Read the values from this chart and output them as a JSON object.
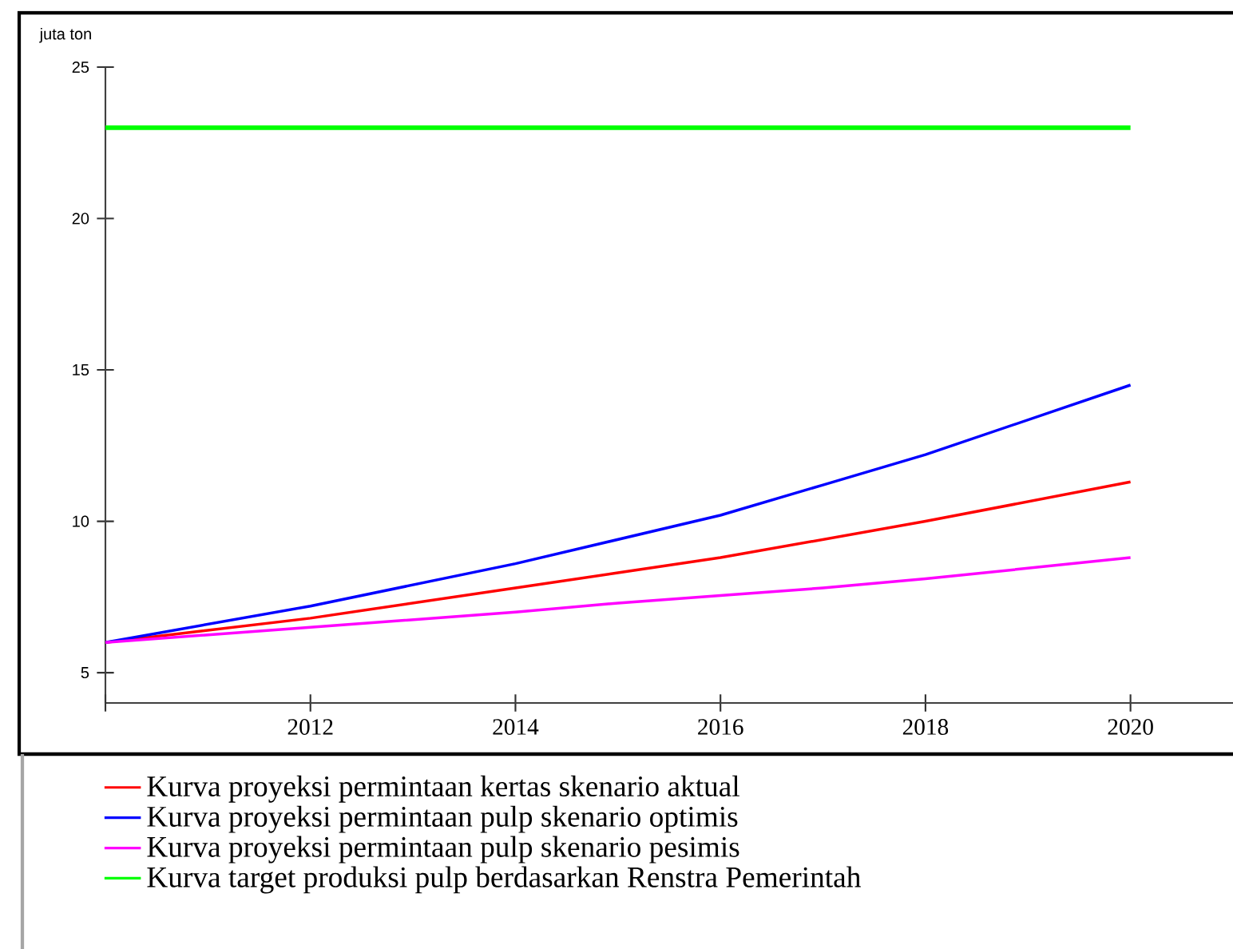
{
  "chart_data": {
    "type": "line",
    "ylabel": "juta ton",
    "x": [
      2010,
      2012,
      2014,
      2015,
      2016,
      2017,
      2018,
      2020
    ],
    "series": [
      {
        "name": "Kurva proyeksi permintaan kertas skenario aktual",
        "color": "#ff0000",
        "values": [
          6.0,
          6.8,
          7.8,
          8.3,
          8.8,
          9.4,
          10.0,
          11.3
        ]
      },
      {
        "name": "Kurva proyeksi permintaan pulp skenario optimis",
        "color": "#0000ff",
        "values": [
          6.0,
          7.2,
          8.6,
          9.4,
          10.2,
          11.2,
          12.2,
          14.5
        ]
      },
      {
        "name": "Kurva proyeksi permintaan pulp skenario pesimis",
        "color": "#ff00ff",
        "values": [
          6.0,
          6.5,
          7.0,
          7.3,
          7.55,
          7.8,
          8.1,
          8.8
        ]
      },
      {
        "name": "Kurva target produksi pulp berdasarkan Renstra Pemerintah",
        "color": "#00ff00",
        "x": [
          2010,
          2020
        ],
        "values": [
          23,
          23
        ]
      }
    ],
    "xlim": [
      2010,
      2021
    ],
    "xticks": [
      2012,
      2014,
      2016,
      2018,
      2020
    ],
    "ylim": [
      4,
      25
    ],
    "yticks": [
      5,
      10,
      15,
      20,
      25
    ],
    "grid": false,
    "legend": "bottom",
    "marker": "none",
    "line_style": "solid"
  }
}
